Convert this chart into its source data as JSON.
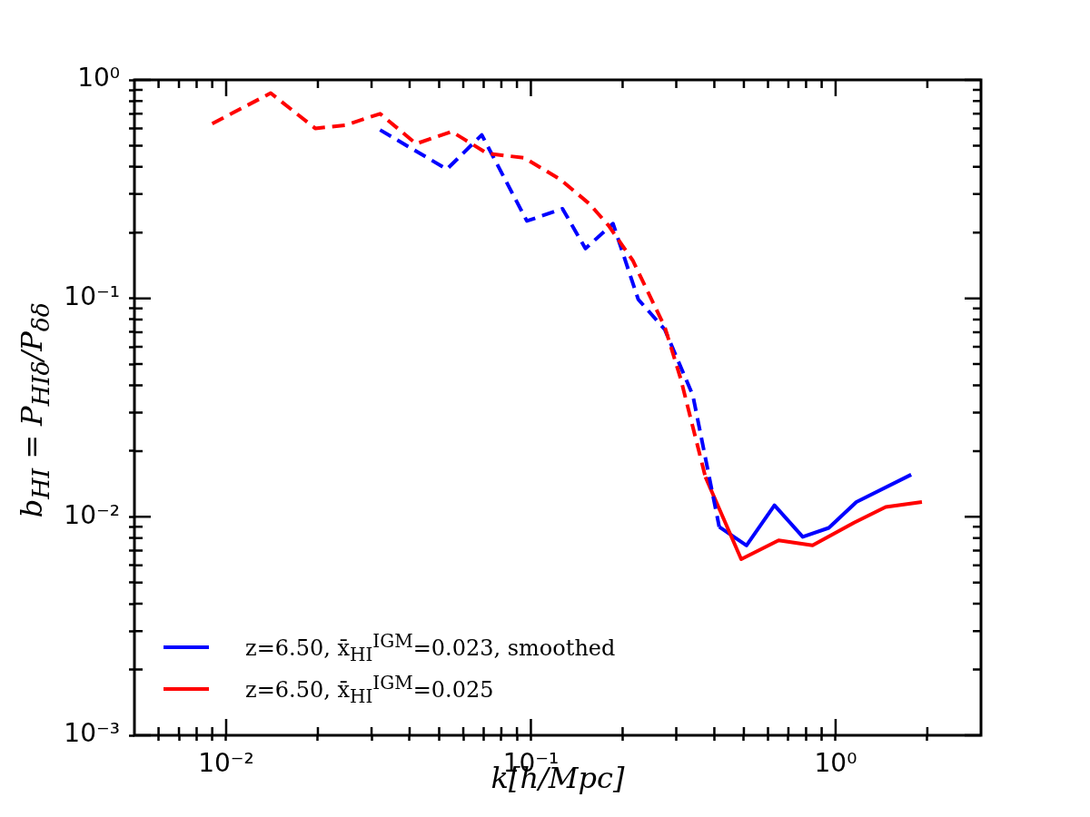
{
  "chart_data": {
    "type": "line",
    "xlabel": "k[h/Mpc]",
    "ylabel": "b$_{HI}$ = P$_{HIδ}$/P$_{δδ}$",
    "log": "xy",
    "grid": false,
    "legend": "bottom left",
    "marker": "none",
    "xlim": [
      0.005,
      3
    ],
    "ylim": [
      0.001,
      1
    ],
    "xticks": [
      {
        "value": 0.006,
        "label": null
      },
      {
        "value": 0.007,
        "label": null
      },
      {
        "value": 0.008,
        "label": null
      },
      {
        "value": 0.009,
        "label": null
      },
      {
        "value": 0.01,
        "label": "10⁻²"
      },
      {
        "value": 0.02,
        "label": null
      },
      {
        "value": 0.03,
        "label": null
      },
      {
        "value": 0.04,
        "label": null
      },
      {
        "value": 0.05,
        "label": null
      },
      {
        "value": 0.06,
        "label": null
      },
      {
        "value": 0.07,
        "label": null
      },
      {
        "value": 0.08,
        "label": null
      },
      {
        "value": 0.09,
        "label": null
      },
      {
        "value": 0.1,
        "label": "10⁻¹"
      },
      {
        "value": 0.2,
        "label": null
      },
      {
        "value": 0.3,
        "label": null
      },
      {
        "value": 0.4,
        "label": null
      },
      {
        "value": 0.5,
        "label": null
      },
      {
        "value": 0.6,
        "label": null
      },
      {
        "value": 0.7,
        "label": null
      },
      {
        "value": 0.8,
        "label": null
      },
      {
        "value": 0.9,
        "label": null
      },
      {
        "value": 1,
        "label": "10⁰"
      },
      {
        "value": 2,
        "label": null
      }
    ],
    "yticks": [
      {
        "value": 0.001,
        "label": "10⁻³"
      },
      {
        "value": 0.002,
        "label": null
      },
      {
        "value": 0.003,
        "label": null
      },
      {
        "value": 0.004,
        "label": null
      },
      {
        "value": 0.005,
        "label": null
      },
      {
        "value": 0.006,
        "label": null
      },
      {
        "value": 0.007,
        "label": null
      },
      {
        "value": 0.008,
        "label": null
      },
      {
        "value": 0.009,
        "label": null
      },
      {
        "value": 0.01,
        "label": "10⁻²"
      },
      {
        "value": 0.02,
        "label": null
      },
      {
        "value": 0.03,
        "label": null
      },
      {
        "value": 0.04,
        "label": null
      },
      {
        "value": 0.05,
        "label": null
      },
      {
        "value": 0.06,
        "label": null
      },
      {
        "value": 0.07,
        "label": null
      },
      {
        "value": 0.08,
        "label": null
      },
      {
        "value": 0.09,
        "label": null
      },
      {
        "value": 0.1,
        "label": "10⁻¹"
      },
      {
        "value": 0.2,
        "label": null
      },
      {
        "value": 0.3,
        "label": null
      },
      {
        "value": 0.4,
        "label": null
      },
      {
        "value": 0.5,
        "label": null
      },
      {
        "value": 0.6,
        "label": null
      },
      {
        "value": 0.7,
        "label": null
      },
      {
        "value": 0.8,
        "label": null
      },
      {
        "value": 0.9,
        "label": null
      },
      {
        "value": 1,
        "label": "10⁰"
      }
    ],
    "series": [
      {
        "name": "z=6.50, x̄$_{HI}$$^{IGM}$=0.023, smoothed",
        "color": "#0000ff",
        "line_style": "solid",
        "x": [
          0.415,
          0.51,
          0.63,
          0.78,
          0.95,
          1.17,
          1.77
        ],
        "values": [
          0.009,
          0.0074,
          0.0113,
          0.0081,
          0.0089,
          0.0117,
          0.0156
        ]
      },
      {
        "name": "z=6.50, x̄$_{HI}$$^{IGM}$=0.025",
        "color": "#ff0000",
        "line_style": "solid",
        "x": [
          0.374,
          0.49,
          0.65,
          0.84,
          1.15,
          1.46,
          1.92
        ],
        "values": [
          0.0152,
          0.0064,
          0.0078,
          0.0074,
          0.0094,
          0.0111,
          0.0117
        ]
      },
      {
        "color": "#0000ff",
        "line_style": "dashed",
        "x": [
          0.032,
          0.053,
          0.069,
          0.097,
          0.127,
          0.151,
          0.186,
          0.225,
          0.275,
          0.34,
          0.415
        ],
        "values": [
          0.59,
          0.39,
          0.56,
          0.226,
          0.257,
          0.169,
          0.22,
          0.099,
          0.072,
          0.036,
          0.009
        ]
      },
      {
        "color": "#ff0000",
        "line_style": "dashed",
        "x": [
          0.009,
          0.014,
          0.0196,
          0.0246,
          0.032,
          0.042,
          0.055,
          0.072,
          0.095,
          0.125,
          0.156,
          0.18,
          0.216,
          0.275,
          0.31,
          0.374
        ],
        "values": [
          0.63,
          0.87,
          0.6,
          0.62,
          0.7,
          0.51,
          0.58,
          0.46,
          0.44,
          0.35,
          0.27,
          0.215,
          0.149,
          0.074,
          0.043,
          0.0152
        ]
      }
    ]
  }
}
